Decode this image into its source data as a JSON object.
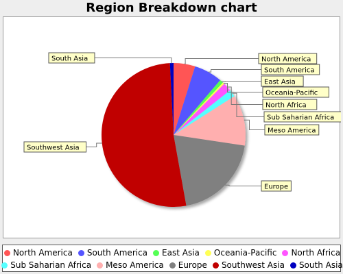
{
  "chart_data": {
    "type": "pie",
    "title": "Region Breakdown chart",
    "slices": [
      {
        "label": "North America",
        "value": 4.8,
        "color": "#ff5555"
      },
      {
        "label": "South America",
        "value": 6.3,
        "color": "#5555ff"
      },
      {
        "label": "East Asia",
        "value": 0.8,
        "color": "#55ff55"
      },
      {
        "label": "Oceania-Pacific",
        "value": 0.4,
        "color": "#ffff55"
      },
      {
        "label": "North Africa",
        "value": 1.9,
        "color": "#ff55ff"
      },
      {
        "label": "Sub Saharian Africa",
        "value": 1.6,
        "color": "#55ffff"
      },
      {
        "label": "Meso America",
        "value": 11.3,
        "color": "#ffafaf"
      },
      {
        "label": "Europe",
        "value": 19.6,
        "color": "#808080"
      },
      {
        "label": "Southwest Asia",
        "value": 51.5,
        "color": "#c00000"
      },
      {
        "label": "South Asia",
        "value": 0.8,
        "color": "#0000c0"
      }
    ],
    "legend_position": "bottom",
    "start_angle": "top, clockwise"
  }
}
